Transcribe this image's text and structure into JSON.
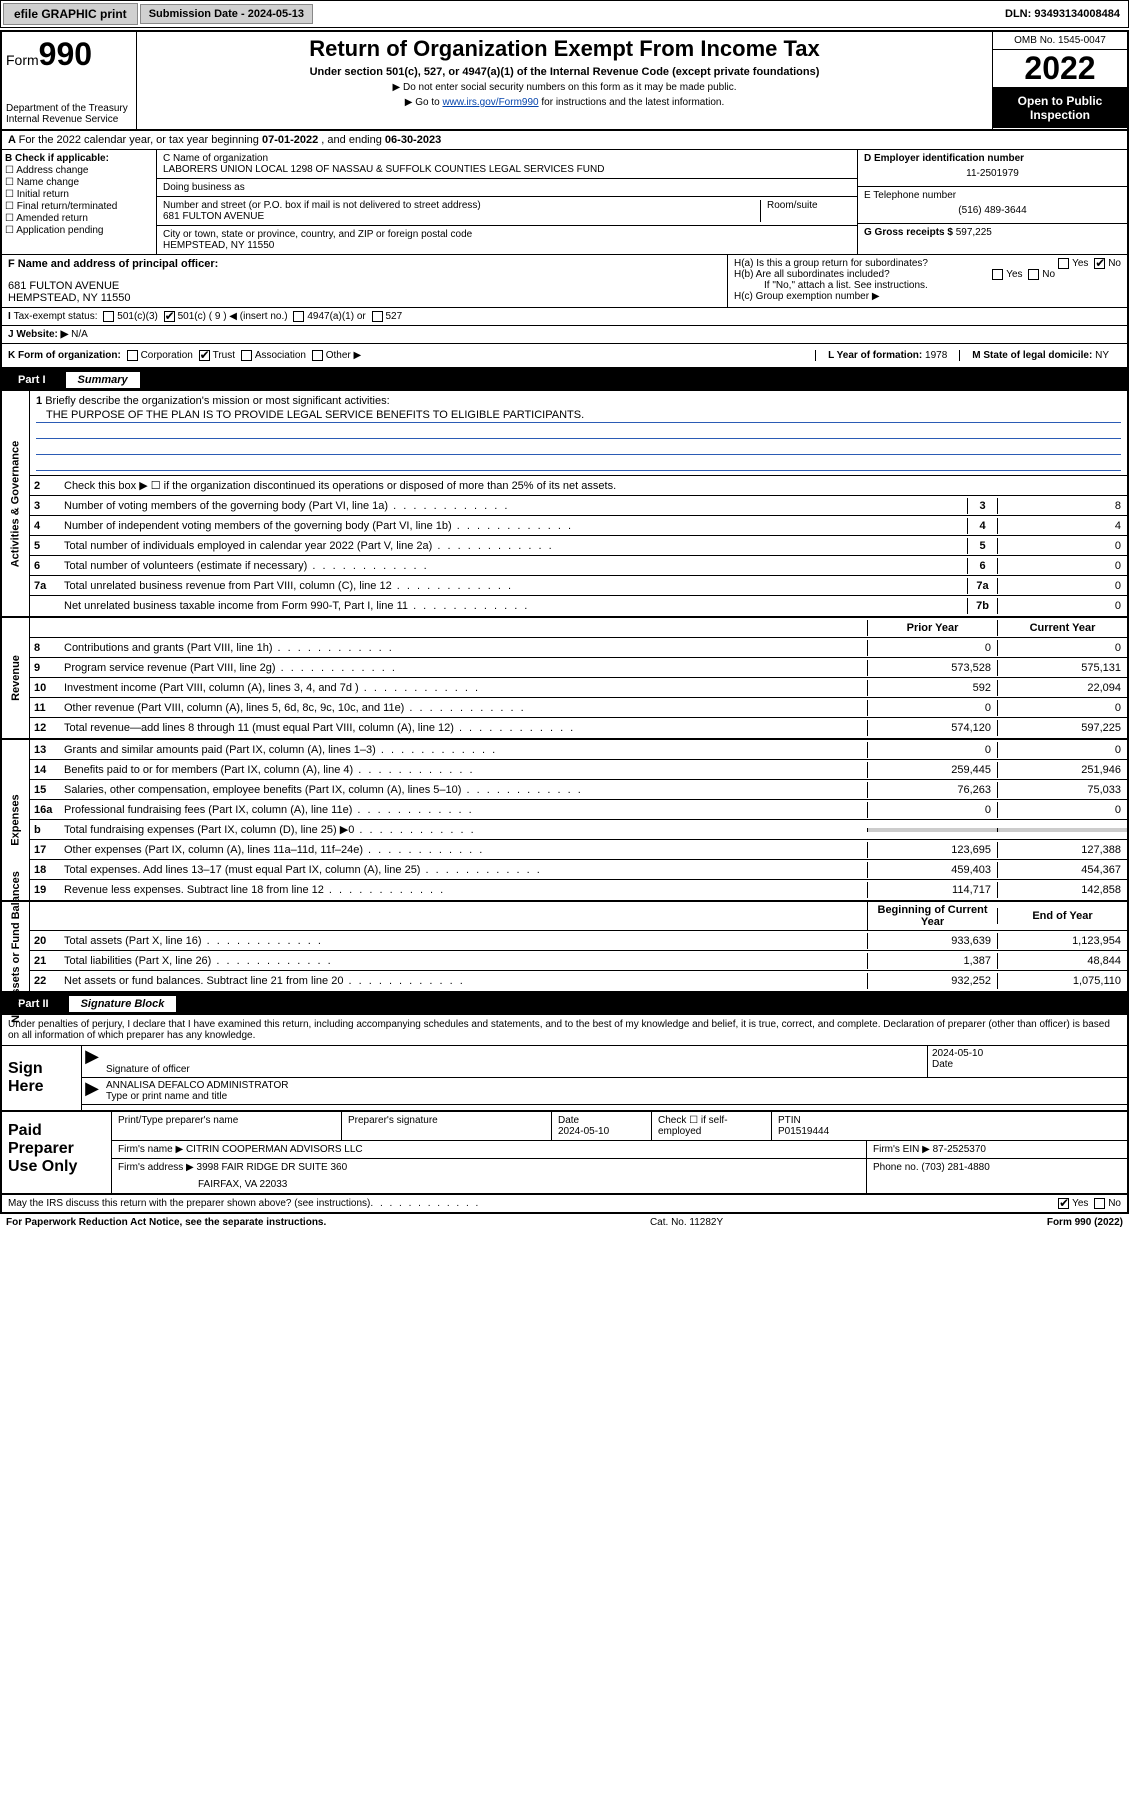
{
  "topbar": {
    "efile": "efile GRAPHIC print",
    "subdate_label": "Submission Date - ",
    "subdate": "2024-05-13",
    "dln_label": "DLN: ",
    "dln": "93493134008484"
  },
  "header": {
    "form_prefix": "Form",
    "form_num": "990",
    "title": "Return of Organization Exempt From Income Tax",
    "subtitle": "Under section 501(c), 527, or 4947(a)(1) of the Internal Revenue Code (except private foundations)",
    "note1": "▶ Do not enter social security numbers on this form as it may be made public.",
    "note2_pre": "▶ Go to ",
    "note2_link": "www.irs.gov/Form990",
    "note2_post": " for instructions and the latest information.",
    "dept": "Department of the Treasury",
    "irs": "Internal Revenue Service",
    "omb": "OMB No. 1545-0047",
    "year": "2022",
    "open": "Open to Public Inspection"
  },
  "A": {
    "text": "For the 2022 calendar year, or tax year beginning ",
    "begin": "07-01-2022",
    "mid": " , and ending ",
    "end": "06-30-2023"
  },
  "B": {
    "label": "B Check if applicable:",
    "items": [
      "Address change",
      "Name change",
      "Initial return",
      "Final return/terminated",
      "Amended return",
      "Application pending"
    ]
  },
  "C": {
    "name_label": "C Name of organization",
    "name": "LABORERS UNION LOCAL 1298 OF NASSAU & SUFFOLK COUNTIES LEGAL SERVICES FUND",
    "dba_label": "Doing business as",
    "dba": "",
    "addr_label": "Number and street (or P.O. box if mail is not delivered to street address)",
    "room_label": "Room/suite",
    "street": "681 FULTON AVENUE",
    "city_label": "City or town, state or province, country, and ZIP or foreign postal code",
    "city": "HEMPSTEAD, NY  11550"
  },
  "D": {
    "label": "D Employer identification number",
    "val": "11-2501979"
  },
  "E": {
    "label": "E Telephone number",
    "val": "(516) 489-3644"
  },
  "G": {
    "label": "G Gross receipts $ ",
    "val": "597,225"
  },
  "F": {
    "label": "F  Name and address of principal officer:",
    "addr1": "681 FULTON AVENUE",
    "addr2": "HEMPSTEAD, NY  11550"
  },
  "H": {
    "a": "H(a)  Is this a group return for subordinates?",
    "b": "H(b)  Are all subordinates included?",
    "b_note": "If \"No,\" attach a list. See instructions.",
    "c": "H(c)  Group exemption number ▶",
    "yes": "Yes",
    "no": "No"
  },
  "I": {
    "label": "Tax-exempt status:",
    "o1": "501(c)(3)",
    "o2": "501(c) ( 9 ) ◀ (insert no.)",
    "o3": "4947(a)(1) or",
    "o4": "527"
  },
  "J": {
    "label": "Website: ▶",
    "val": " N/A"
  },
  "K": {
    "label": "K Form of organization:",
    "opts": [
      "Corporation",
      "Trust",
      "Association",
      "Other ▶"
    ],
    "L": "L Year of formation: ",
    "Lval": "1978",
    "M": "M State of legal domicile: ",
    "Mval": "NY"
  },
  "part1": {
    "label": "Part I",
    "title": "Summary"
  },
  "mission": {
    "num": "1",
    "label": "Briefly describe the organization's mission or most significant activities:",
    "text": "THE PURPOSE OF THE PLAN IS TO PROVIDE LEGAL SERVICE BENEFITS TO ELIGIBLE PARTICIPANTS."
  },
  "gov": {
    "label": "Activities & Governance",
    "l2": "Check this box ▶ ☐  if the organization discontinued its operations or disposed of more than 25% of its net assets.",
    "rows": [
      {
        "n": "3",
        "d": "Number of voting members of the governing body (Part VI, line 1a)",
        "box": "3",
        "v": "8"
      },
      {
        "n": "4",
        "d": "Number of independent voting members of the governing body (Part VI, line 1b)",
        "box": "4",
        "v": "4"
      },
      {
        "n": "5",
        "d": "Total number of individuals employed in calendar year 2022 (Part V, line 2a)",
        "box": "5",
        "v": "0"
      },
      {
        "n": "6",
        "d": "Total number of volunteers (estimate if necessary)",
        "box": "6",
        "v": "0"
      },
      {
        "n": "7a",
        "d": "Total unrelated business revenue from Part VIII, column (C), line 12",
        "box": "7a",
        "v": "0"
      },
      {
        "n": "",
        "d": "Net unrelated business taxable income from Form 990-T, Part I, line 11",
        "box": "7b",
        "v": "0"
      }
    ]
  },
  "twocol": {
    "prior": "Prior Year",
    "curr": "Current Year",
    "begin": "Beginning of Current Year",
    "end": "End of Year"
  },
  "rev": {
    "label": "Revenue",
    "rows": [
      {
        "n": "8",
        "d": "Contributions and grants (Part VIII, line 1h)",
        "p": "0",
        "c": "0"
      },
      {
        "n": "9",
        "d": "Program service revenue (Part VIII, line 2g)",
        "p": "573,528",
        "c": "575,131"
      },
      {
        "n": "10",
        "d": "Investment income (Part VIII, column (A), lines 3, 4, and 7d )",
        "p": "592",
        "c": "22,094"
      },
      {
        "n": "11",
        "d": "Other revenue (Part VIII, column (A), lines 5, 6d, 8c, 9c, 10c, and 11e)",
        "p": "0",
        "c": "0"
      },
      {
        "n": "12",
        "d": "Total revenue—add lines 8 through 11 (must equal Part VIII, column (A), line 12)",
        "p": "574,120",
        "c": "597,225"
      }
    ]
  },
  "exp": {
    "label": "Expenses",
    "rows": [
      {
        "n": "13",
        "d": "Grants and similar amounts paid (Part IX, column (A), lines 1–3)",
        "p": "0",
        "c": "0"
      },
      {
        "n": "14",
        "d": "Benefits paid to or for members (Part IX, column (A), line 4)",
        "p": "259,445",
        "c": "251,946"
      },
      {
        "n": "15",
        "d": "Salaries, other compensation, employee benefits (Part IX, column (A), lines 5–10)",
        "p": "76,263",
        "c": "75,033"
      },
      {
        "n": "16a",
        "d": "Professional fundraising fees (Part IX, column (A), line 11e)",
        "p": "0",
        "c": "0"
      },
      {
        "n": "b",
        "d": "Total fundraising expenses (Part IX, column (D), line 25) ▶0",
        "p": "",
        "c": "",
        "grey": true
      },
      {
        "n": "17",
        "d": "Other expenses (Part IX, column (A), lines 11a–11d, 11f–24e)",
        "p": "123,695",
        "c": "127,388"
      },
      {
        "n": "18",
        "d": "Total expenses. Add lines 13–17 (must equal Part IX, column (A), line 25)",
        "p": "459,403",
        "c": "454,367"
      },
      {
        "n": "19",
        "d": "Revenue less expenses. Subtract line 18 from line 12",
        "p": "114,717",
        "c": "142,858"
      }
    ]
  },
  "net": {
    "label": "Net Assets or Fund Balances",
    "rows": [
      {
        "n": "20",
        "d": "Total assets (Part X, line 16)",
        "p": "933,639",
        "c": "1,123,954"
      },
      {
        "n": "21",
        "d": "Total liabilities (Part X, line 26)",
        "p": "1,387",
        "c": "48,844"
      },
      {
        "n": "22",
        "d": "Net assets or fund balances. Subtract line 21 from line 20",
        "p": "932,252",
        "c": "1,075,110"
      }
    ]
  },
  "part2": {
    "label": "Part II",
    "title": "Signature Block"
  },
  "sig": {
    "decl": "Under penalties of perjury, I declare that I have examined this return, including accompanying schedules and statements, and to the best of my knowledge and belief, it is true, correct, and complete. Declaration of preparer (other than officer) is based on all information of which preparer has any knowledge.",
    "here": "Sign Here",
    "sigoff": "Signature of officer",
    "date": "Date",
    "dateval": "2024-05-10",
    "name": "ANNALISA DEFALCO ADMINISTRATOR",
    "typelabel": "Type or print name and title"
  },
  "paid": {
    "label": "Paid Preparer Use Only",
    "h": [
      "Print/Type preparer's name",
      "Preparer's signature",
      "Date",
      "",
      "PTIN"
    ],
    "r1": {
      "date": "2024-05-10",
      "chk": "Check ☐ if self-employed",
      "ptin": "P01519444"
    },
    "firm": "Firm's name   ▶ ",
    "firmval": "CITRIN COOPERMAN ADVISORS LLC",
    "ein": "Firm's EIN ▶ ",
    "einval": "87-2525370",
    "addr": "Firm's address ▶ ",
    "addrval": "3998 FAIR RIDGE DR SUITE 360",
    "addr2": "FAIRFAX, VA  22033",
    "phone": "Phone no. ",
    "phoneval": "(703) 281-4880"
  },
  "may": {
    "text": "May the IRS discuss this return with the preparer shown above? (see instructions)",
    "yes": "Yes",
    "no": "No"
  },
  "footer": {
    "left": "For Paperwork Reduction Act Notice, see the separate instructions.",
    "mid": "Cat. No. 11282Y",
    "right": "Form 990 (2022)"
  },
  "colors": {
    "link": "#0645ad",
    "ul": "#2b5bb5",
    "grey": "#cccccc",
    "black": "#000000"
  }
}
